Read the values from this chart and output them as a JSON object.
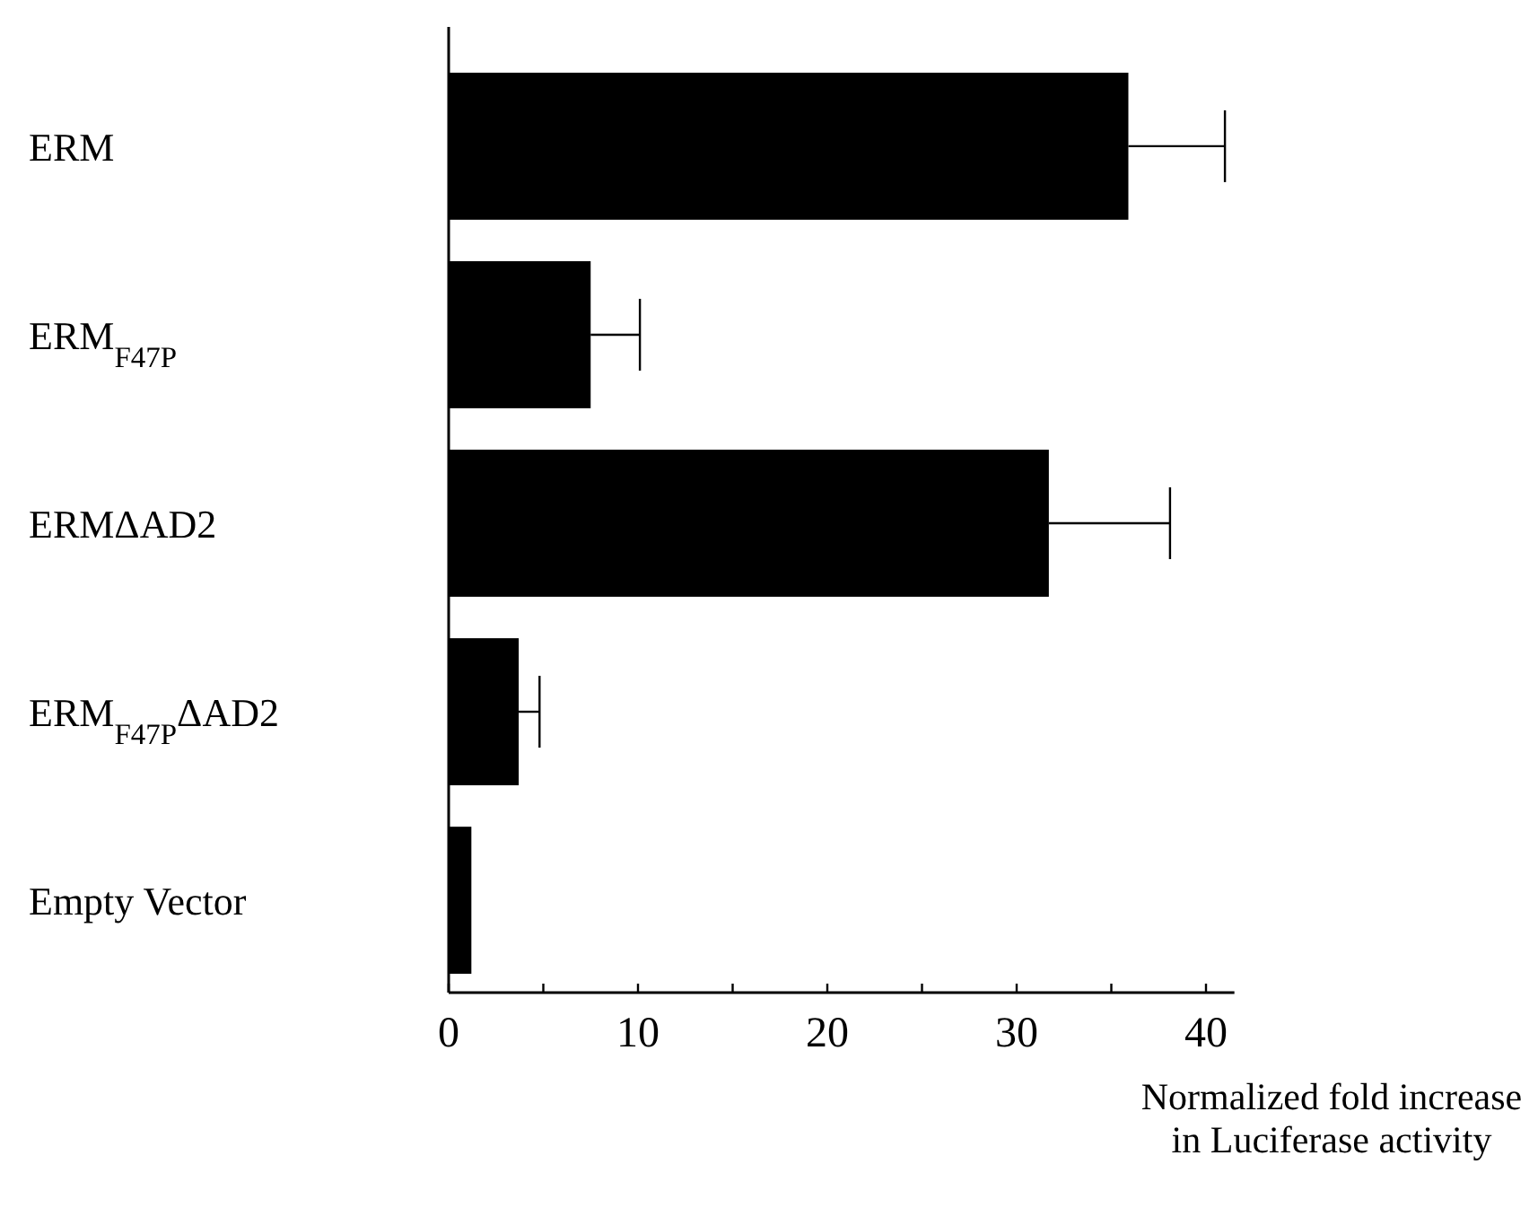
{
  "chart_data": {
    "type": "bar",
    "orientation": "horizontal",
    "categories": [
      "ERM",
      "ERM$_{F47P}$",
      "ERMΔAD2",
      "ERM$_{F47P}$ΔAD2",
      "Empty Vector"
    ],
    "values": [
      35.9,
      7.5,
      31.7,
      3.7,
      1.2
    ],
    "errors": [
      [
        35.9,
        41.0
      ],
      [
        7.5,
        10.1
      ],
      [
        31.7,
        38.1
      ],
      [
        3.7,
        4.8
      ],
      null
    ],
    "color": "#000000",
    "xlim": [
      0,
      41.5
    ],
    "xticks": [
      0,
      {
        "value": 5,
        "label": null
      },
      10,
      {
        "value": 15,
        "label": null
      },
      20,
      {
        "value": 25,
        "label": null
      },
      30,
      {
        "value": 35,
        "label": null
      },
      40
    ],
    "xlabel": "Normalized fold increase\nin Luciferase activity",
    "grid": false
  }
}
